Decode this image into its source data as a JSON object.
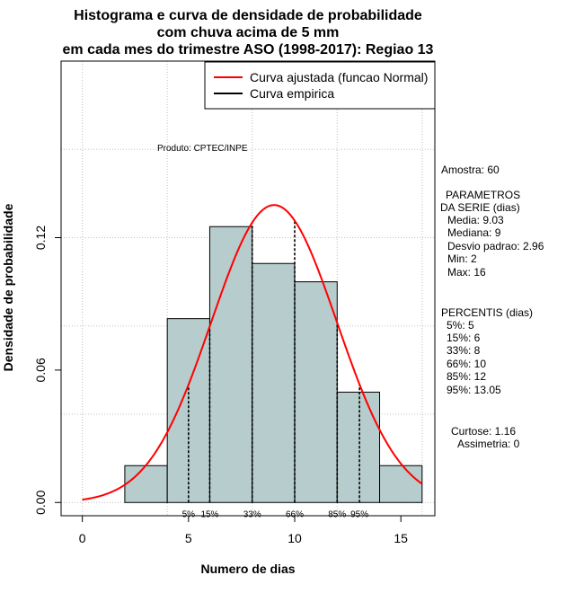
{
  "chart_data": {
    "type": "bar",
    "title": [
      "Histograma e curva de densidade de probabilidade",
      "com chuva acima de 5 mm",
      "em cada mes do trimestre ASO (1998-2017): Regiao 13"
    ],
    "xlabel": "Numero de dias",
    "ylabel": "Densidade de probabilidade",
    "xlim": [
      -1,
      16.6
    ],
    "ylim": [
      -0.006,
      0.2
    ],
    "x_ticks": [
      0,
      5,
      10,
      15
    ],
    "x_tick_labels": [
      "0",
      "5",
      "10",
      "15"
    ],
    "y_ticks": [
      0.0,
      0.06,
      0.12
    ],
    "y_tick_labels": [
      "0.00",
      "0.06",
      "0.12"
    ],
    "bins": [
      {
        "start": 2,
        "end": 4,
        "density": 0.0167
      },
      {
        "start": 4,
        "end": 6,
        "density": 0.0833
      },
      {
        "start": 6,
        "end": 8,
        "density": 0.125
      },
      {
        "start": 8,
        "end": 10,
        "density": 0.1083
      },
      {
        "start": 10,
        "end": 12,
        "density": 0.1
      },
      {
        "start": 12,
        "end": 14,
        "density": 0.05
      },
      {
        "start": 14,
        "end": 16,
        "density": 0.0167
      }
    ],
    "normal_curve": {
      "name": "Curva ajustada (funcao Normal)",
      "mean": 9.03,
      "sd": 2.96,
      "range": [
        0,
        16
      ],
      "color": "#ff0000"
    },
    "percentile_lines": [
      {
        "x": 5,
        "label": "5%"
      },
      {
        "x": 6,
        "label": "15%"
      },
      {
        "x": 8,
        "label": "33%"
      },
      {
        "x": 10,
        "label": "66%"
      },
      {
        "x": 12,
        "label": "85%"
      },
      {
        "x": 13.05,
        "label": "95%"
      }
    ],
    "legend": [
      {
        "label": "Curva ajustada (funcao Normal)",
        "color": "#ff0000"
      },
      {
        "label": "Curva empirica",
        "color": "#000000"
      }
    ],
    "legend_position": "top-right",
    "grid": true,
    "annotation": "Produto: CPTEC/INPE",
    "colors": {
      "bar_fill": "#b7cccc",
      "bar_stroke": "#000000",
      "grid": "#c0c0c0"
    }
  },
  "stats": {
    "sample": "Amostra: 60",
    "params_header_1": "PARAMETROS",
    "params_header_2": "DA SERIE (dias)",
    "params": [
      "Media: 9.03",
      "Mediana: 9",
      "Desvio padrao: 2.96",
      "Min: 2",
      "Max: 16"
    ],
    "percentiles_header": "PERCENTIS (dias)",
    "percentiles": [
      "5%: 5",
      "15%: 6",
      "33%: 8",
      "66%: 10",
      "85%: 12",
      "95%: 13.05"
    ],
    "kurtosis": "Curtose: 1.16",
    "skewness": "Assimetria: 0"
  }
}
